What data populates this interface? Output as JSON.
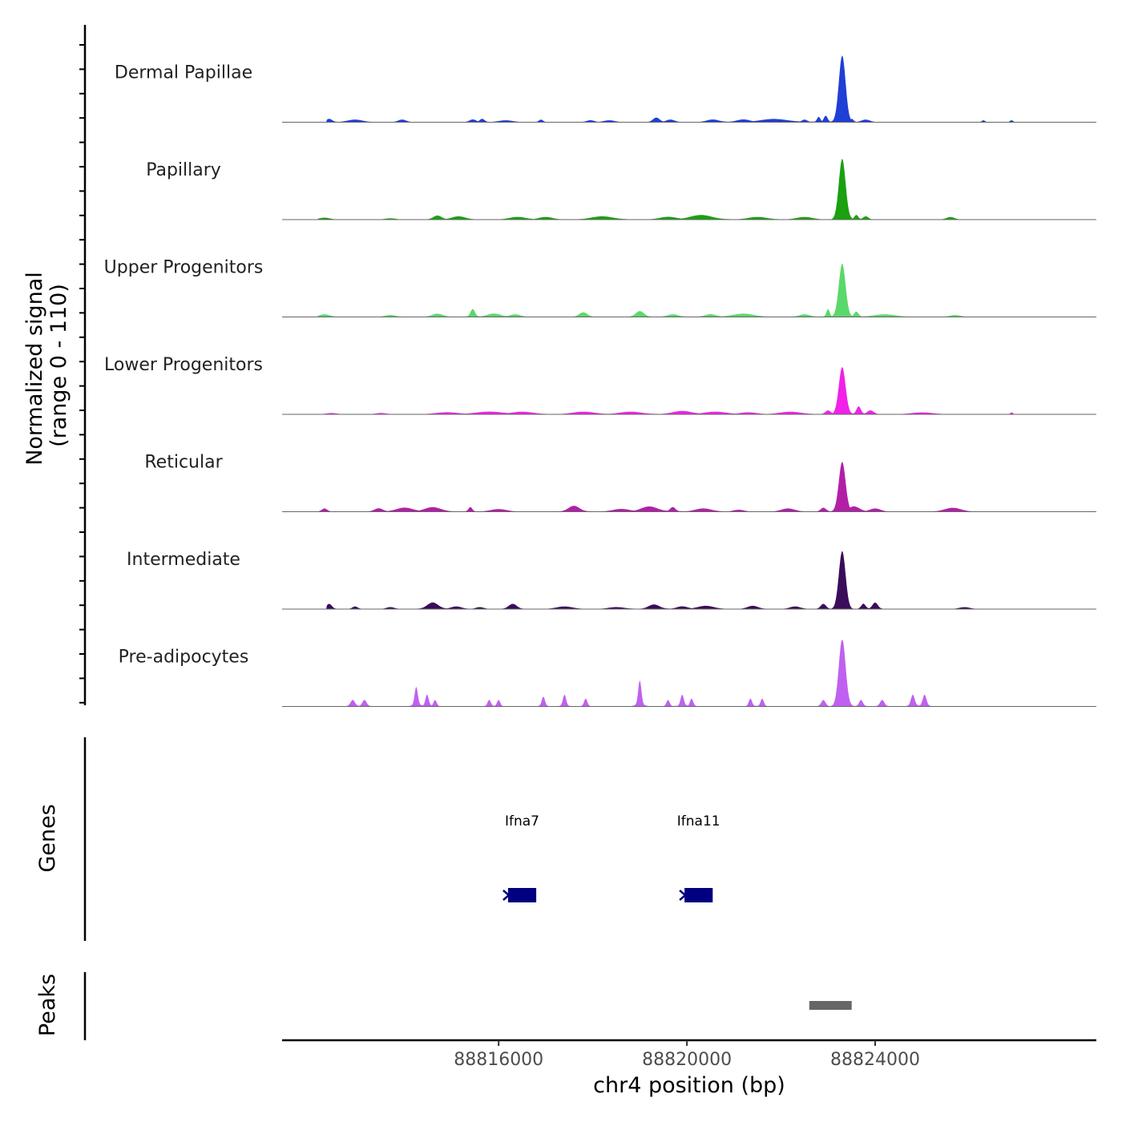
{
  "chart_data": {
    "type": "area",
    "title": "",
    "chromosome": "chr4",
    "xlabel": "chr4 position (bp)",
    "ylabel": "Normalized signal",
    "ylabel_sub": "(range 0 - 110)",
    "xlim": [
      88811400,
      88828700
    ],
    "ylim": [
      0,
      110
    ],
    "x_ticks": [
      88816000,
      88820000,
      88824000
    ],
    "x_tick_labels": [
      "88816000",
      "88820000",
      "88824000"
    ],
    "main_peak_position": 88823300,
    "series": [
      {
        "name": "Dermal Papillae",
        "color": "#1f3fd6",
        "peak_height": 110,
        "start": 88812350,
        "end": 88826950,
        "clusters": [
          [
            88812400,
            5,
            110
          ],
          [
            88812950,
            4,
            280
          ],
          [
            88813950,
            4,
            150
          ],
          [
            88815450,
            4,
            120
          ],
          [
            88815650,
            5,
            90
          ],
          [
            88816150,
            3,
            260
          ],
          [
            88816900,
            4,
            80
          ],
          [
            88817950,
            3,
            140
          ],
          [
            88818350,
            3,
            200
          ],
          [
            88819350,
            7,
            120
          ],
          [
            88819650,
            4,
            160
          ],
          [
            88820550,
            4,
            220
          ],
          [
            88821200,
            4,
            240
          ],
          [
            88821850,
            5,
            500
          ],
          [
            88822500,
            4,
            100
          ],
          [
            88822800,
            8,
            60
          ],
          [
            88822950,
            10,
            70
          ],
          [
            88823500,
            5,
            70
          ],
          [
            88823800,
            4,
            160
          ],
          [
            88826300,
            3,
            60
          ],
          [
            88826900,
            3,
            60
          ]
        ]
      },
      {
        "name": "Papillary",
        "color": "#1aa010",
        "peak_height": 100,
        "start": 88812150,
        "end": 88826950,
        "clusters": [
          [
            88812300,
            3,
            200
          ],
          [
            88813700,
            2,
            200
          ],
          [
            88814700,
            6,
            150
          ],
          [
            88815150,
            5,
            250
          ],
          [
            88816400,
            4,
            300
          ],
          [
            88817000,
            4,
            250
          ],
          [
            88818200,
            5,
            400
          ],
          [
            88819600,
            4,
            300
          ],
          [
            88820300,
            7,
            400
          ],
          [
            88821500,
            4,
            350
          ],
          [
            88822500,
            4,
            300
          ],
          [
            88823400,
            10,
            60
          ],
          [
            88823600,
            7,
            70
          ],
          [
            88823800,
            5,
            100
          ],
          [
            88825600,
            4,
            150
          ]
        ]
      },
      {
        "name": "Upper Progenitors",
        "color": "#5bd86b",
        "peak_height": 88,
        "start": 88812150,
        "end": 88826950,
        "clusters": [
          [
            88812300,
            4,
            200
          ],
          [
            88813700,
            3,
            200
          ],
          [
            88814700,
            5,
            200
          ],
          [
            88815450,
            12,
            80
          ],
          [
            88815900,
            5,
            250
          ],
          [
            88816350,
            4,
            200
          ],
          [
            88817800,
            7,
            150
          ],
          [
            88819000,
            9,
            150
          ],
          [
            88819700,
            4,
            200
          ],
          [
            88820500,
            4,
            200
          ],
          [
            88821200,
            5,
            400
          ],
          [
            88822500,
            4,
            200
          ],
          [
            88823000,
            12,
            60
          ],
          [
            88823600,
            8,
            80
          ],
          [
            88824200,
            4,
            400
          ],
          [
            88825700,
            3,
            200
          ]
        ]
      },
      {
        "name": "Lower Progenitors",
        "color": "#f021e8",
        "peak_height": 78,
        "start": 88812150,
        "end": 88826950,
        "clusters": [
          [
            88812450,
            2,
            200
          ],
          [
            88813500,
            2,
            200
          ],
          [
            88814900,
            3,
            400
          ],
          [
            88815800,
            4,
            500
          ],
          [
            88816500,
            4,
            400
          ],
          [
            88817800,
            4,
            400
          ],
          [
            88818800,
            4,
            400
          ],
          [
            88819900,
            5,
            350
          ],
          [
            88820600,
            4,
            400
          ],
          [
            88821300,
            3,
            300
          ],
          [
            88822200,
            4,
            400
          ],
          [
            88823000,
            6,
            100
          ],
          [
            88823650,
            12,
            80
          ],
          [
            88823900,
            6,
            120
          ],
          [
            88825000,
            3,
            400
          ],
          [
            88826900,
            3,
            50
          ]
        ]
      },
      {
        "name": "Reticular",
        "color": "#b21fa6",
        "peak_height": 82,
        "start": 88812150,
        "end": 88826950,
        "clusters": [
          [
            88812300,
            5,
            100
          ],
          [
            88813450,
            5,
            150
          ],
          [
            88814000,
            6,
            300
          ],
          [
            88814600,
            7,
            300
          ],
          [
            88815400,
            7,
            70
          ],
          [
            88816000,
            4,
            300
          ],
          [
            88817600,
            9,
            200
          ],
          [
            88818600,
            4,
            300
          ],
          [
            88819200,
            8,
            300
          ],
          [
            88819700,
            7,
            100
          ],
          [
            88820350,
            5,
            300
          ],
          [
            88821100,
            3,
            200
          ],
          [
            88822150,
            5,
            250
          ],
          [
            88822900,
            6,
            100
          ],
          [
            88823550,
            8,
            200
          ],
          [
            88824000,
            5,
            200
          ],
          [
            88825650,
            6,
            300
          ]
        ]
      },
      {
        "name": "Intermediate",
        "color": "#3a0c5a",
        "peak_height": 96,
        "start": 88812350,
        "end": 88826950,
        "clusters": [
          [
            88812400,
            8,
            100
          ],
          [
            88812950,
            4,
            100
          ],
          [
            88813700,
            3,
            150
          ],
          [
            88814600,
            10,
            200
          ],
          [
            88815100,
            4,
            200
          ],
          [
            88815600,
            3,
            150
          ],
          [
            88816300,
            8,
            150
          ],
          [
            88817400,
            4,
            300
          ],
          [
            88818500,
            3,
            300
          ],
          [
            88819300,
            7,
            200
          ],
          [
            88819900,
            4,
            200
          ],
          [
            88820400,
            5,
            300
          ],
          [
            88821400,
            5,
            200
          ],
          [
            88822300,
            4,
            200
          ],
          [
            88822900,
            8,
            100
          ],
          [
            88823750,
            8,
            80
          ],
          [
            88824000,
            10,
            100
          ],
          [
            88825900,
            3,
            200
          ]
        ]
      },
      {
        "name": "Pre-adipocytes",
        "color": "#c060f0",
        "peak_height": 110,
        "start": 88812700,
        "end": 88826000,
        "clusters": [
          [
            88812900,
            10,
            80
          ],
          [
            88813150,
            10,
            80
          ],
          [
            88814250,
            30,
            60
          ],
          [
            88814480,
            18,
            60
          ],
          [
            88814650,
            10,
            60
          ],
          [
            88815800,
            10,
            60
          ],
          [
            88816000,
            10,
            60
          ],
          [
            88816950,
            15,
            60
          ],
          [
            88817400,
            18,
            60
          ],
          [
            88817850,
            12,
            60
          ],
          [
            88819000,
            40,
            60
          ],
          [
            88819600,
            10,
            60
          ],
          [
            88819900,
            18,
            60
          ],
          [
            88820100,
            12,
            60
          ],
          [
            88821350,
            12,
            60
          ],
          [
            88821600,
            12,
            60
          ],
          [
            88822900,
            10,
            80
          ],
          [
            88823350,
            25,
            60
          ],
          [
            88823700,
            10,
            70
          ],
          [
            88824150,
            10,
            80
          ],
          [
            88824800,
            18,
            70
          ],
          [
            88825050,
            18,
            70
          ]
        ]
      }
    ],
    "genes": [
      {
        "name": "Ifna7",
        "start": 88816200,
        "end": 88816800,
        "strand": "-"
      },
      {
        "name": "Ifna11",
        "start": 88819950,
        "end": 88820550,
        "strand": "-"
      }
    ],
    "peaks": [
      {
        "start": 88822600,
        "end": 88823500
      }
    ]
  },
  "panels": {
    "genes_title": "Genes",
    "peaks_title": "Peaks"
  },
  "colors": {
    "gene": "#000080",
    "peak": "#666666",
    "baseline": "#666666",
    "axis": "#000000"
  }
}
